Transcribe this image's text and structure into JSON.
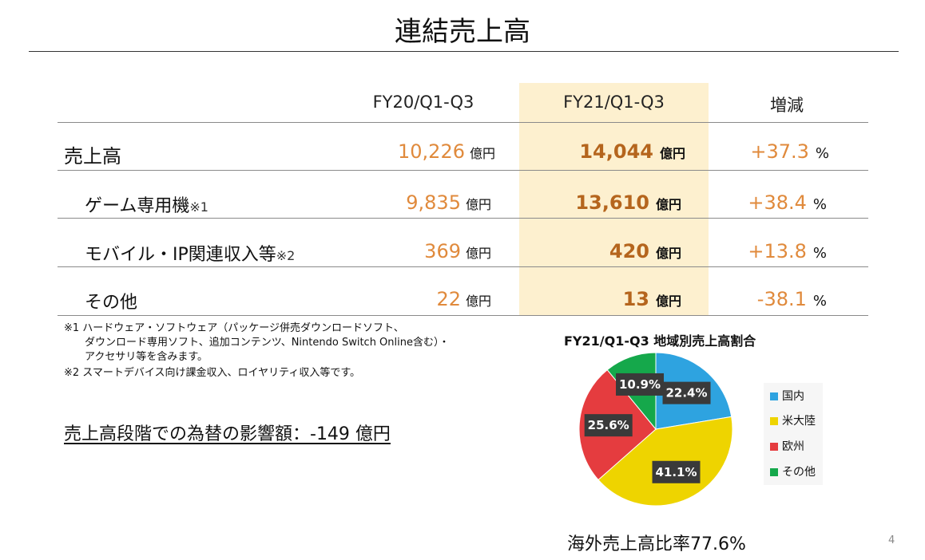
{
  "title": "連結売上高",
  "table": {
    "columns": [
      "FY20/Q1-Q3",
      "FY21/Q1-Q3",
      "増減"
    ],
    "unit_yen": "億円",
    "unit_pct": "%",
    "rows": [
      {
        "label": "売上高",
        "note": "",
        "fy20": "10,226",
        "fy21": "14,044",
        "change": "+37.3"
      },
      {
        "label": "ゲーム専用機",
        "note": "※1",
        "fy20": "9,835",
        "fy21": "13,610",
        "change": "+38.4"
      },
      {
        "label": "モバイル・IP関連収入等",
        "note": "※2",
        "fy20": "369",
        "fy21": "420",
        "change": "+13.8"
      },
      {
        "label": "その他",
        "note": "",
        "fy20": "22",
        "fy21": "13",
        "change": "-38.1"
      }
    ]
  },
  "footnotes": [
    "※1 ハードウェア・ソフトウェア（パッケージ併売ダウンロードソフト、",
    "　　ダウンロード専用ソフト、追加コンテンツ、Nintendo Switch Online含む）・",
    "　　アクセサリ等を含みます。",
    "※2 スマートデバイス向け課金収入、ロイヤリティ収入等です。"
  ],
  "fx_impact": "売上高段階での為替の影響額：-149 億円",
  "overseas_ratio": "海外売上高比率77.6%",
  "page_number": "4",
  "chart_data": {
    "type": "pie",
    "title": "FY21/Q1-Q3 地域別売上高割合",
    "labels": [
      "国内",
      "米大陸",
      "欧州",
      "その他"
    ],
    "values": [
      22.4,
      41.1,
      25.6,
      10.9
    ],
    "value_labels": [
      "22.4%",
      "41.1%",
      "25.6%",
      "10.9%"
    ],
    "colors": [
      "#2ea3e0",
      "#eed400",
      "#e53c3f",
      "#15a84b"
    ],
    "legend": "right"
  }
}
